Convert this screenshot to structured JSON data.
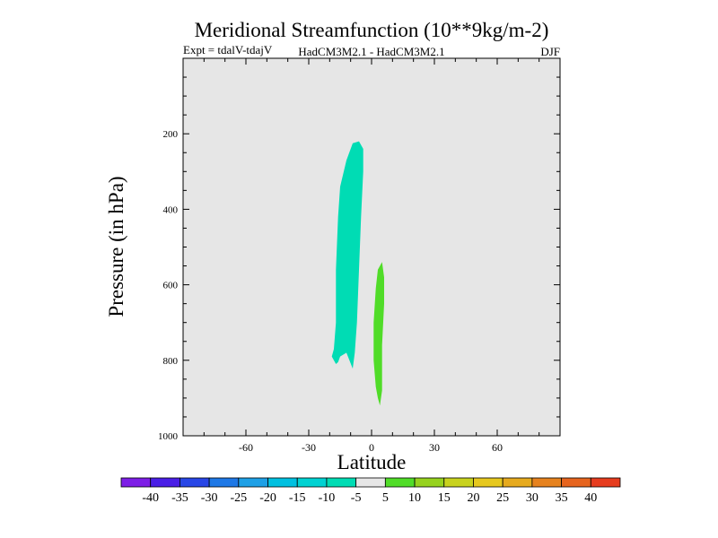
{
  "chart_data": {
    "type": "contour",
    "title": "Meridional Streamfunction (10**9kg/m-2)",
    "subtitle_left": "Expt = tdalV-tdajV",
    "subtitle_center": "HadCM3M2.1 - HadCM3M2.1",
    "subtitle_right": "DJF",
    "xlabel": "Latitude",
    "ylabel": "Pressure (in hPa)",
    "xlim": [
      -90,
      90
    ],
    "ylim": [
      1000,
      0
    ],
    "xticks": [
      -60,
      -30,
      0,
      30,
      60
    ],
    "yticks": [
      200,
      400,
      600,
      800,
      1000
    ],
    "background_color": "#e6e6e6",
    "contour_regions": [
      {
        "level": "-10 to -5",
        "color": "#00dcb4",
        "outline": [
          [
            -17,
            810
          ],
          [
            -19,
            790
          ],
          [
            -18,
            770
          ],
          [
            -17,
            700
          ],
          [
            -17,
            560
          ],
          [
            -16,
            420
          ],
          [
            -15,
            340
          ],
          [
            -12,
            270
          ],
          [
            -9,
            225
          ],
          [
            -6,
            220
          ],
          [
            -4,
            240
          ],
          [
            -4,
            300
          ],
          [
            -5,
            420
          ],
          [
            -6,
            560
          ],
          [
            -7,
            700
          ],
          [
            -8,
            780
          ],
          [
            -9,
            822
          ],
          [
            -12,
            780
          ],
          [
            -15,
            790
          ],
          [
            -16,
            805
          ]
        ]
      },
      {
        "level": "5 to 10",
        "color": "#50dc28",
        "outline": [
          [
            2,
            870
          ],
          [
            1,
            800
          ],
          [
            1,
            700
          ],
          [
            2,
            610
          ],
          [
            3,
            560
          ],
          [
            5,
            540
          ],
          [
            6,
            580
          ],
          [
            6,
            650
          ],
          [
            5,
            760
          ],
          [
            5,
            880
          ],
          [
            4,
            920
          ],
          [
            3,
            900
          ]
        ]
      }
    ],
    "colorbar": {
      "labels": [
        "-40",
        "-35",
        "-30",
        "-25",
        "-20",
        "-15",
        "-10",
        "-5",
        "5",
        "10",
        "15",
        "20",
        "25",
        "30",
        "35",
        "40"
      ],
      "colors": [
        "#7d1ee6",
        "#4a1ee6",
        "#2846e6",
        "#1e78e6",
        "#1ea0e6",
        "#00c0e0",
        "#00d2d2",
        "#00dcb4",
        "#e6e6e6",
        "#50dc28",
        "#96d21e",
        "#c8d21e",
        "#e6c81e",
        "#e6aa1e",
        "#e6821e",
        "#e6641e",
        "#e63c1e"
      ]
    }
  }
}
